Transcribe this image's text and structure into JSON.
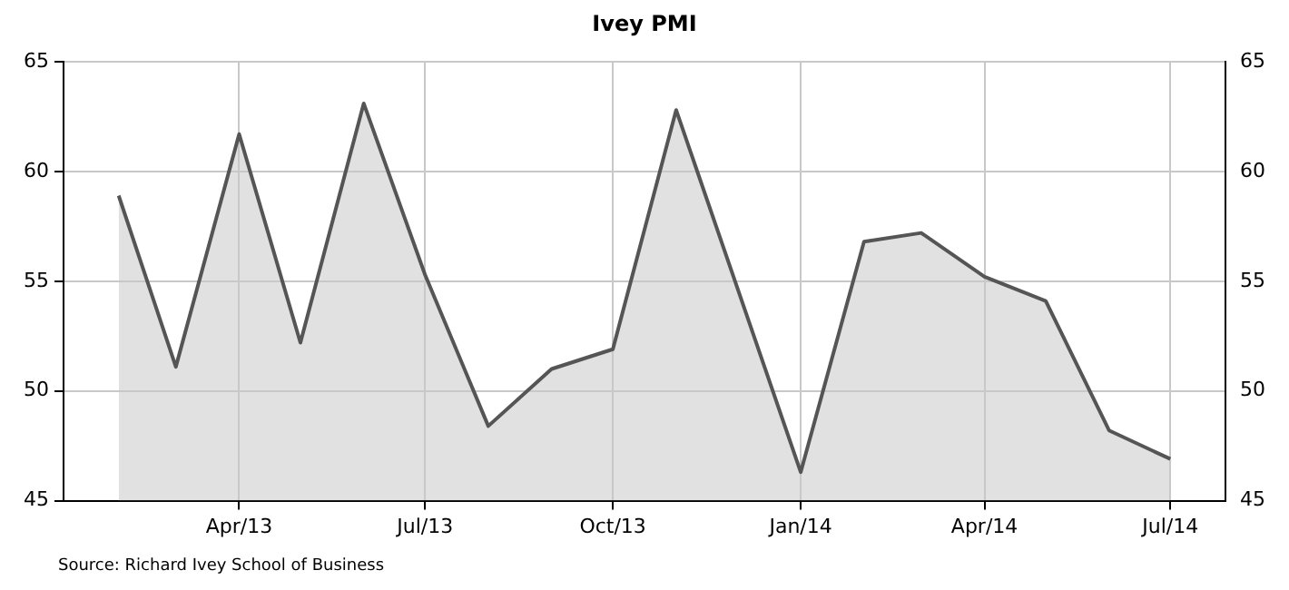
{
  "chart_data": {
    "type": "area",
    "title": "Ivey PMI",
    "x": [
      "2013-02-01",
      "2013-03-01",
      "2013-04-01",
      "2013-05-01",
      "2013-06-01",
      "2013-07-01",
      "2013-08-01",
      "2013-09-01",
      "2013-10-01",
      "2013-11-01",
      "2014-01-01",
      "2014-02-01",
      "2014-03-01",
      "2014-04-01",
      "2014-05-01",
      "2014-06-01",
      "2014-07-01"
    ],
    "series": [
      {
        "color": "#555555",
        "values": [
          58.9,
          51.1,
          61.7,
          52.2,
          63.1,
          55.3,
          48.4,
          51.0,
          51.9,
          62.8,
          46.3,
          56.8,
          57.2,
          55.2,
          54.1,
          48.2,
          46.9
        ]
      }
    ],
    "xlim": [
      "2013-01-05",
      "2014-07-28"
    ],
    "xticks": [
      {
        "value": "2013-04-01",
        "label": "Apr/13"
      },
      {
        "value": "2013-07-01",
        "label": "Jul/13"
      },
      {
        "value": "2013-10-01",
        "label": "Oct/13"
      },
      {
        "value": "2014-01-01",
        "label": "Jan/14"
      },
      {
        "value": "2014-04-01",
        "label": "Apr/14"
      },
      {
        "value": "2014-07-01",
        "label": "Jul/14"
      }
    ],
    "ylim": [
      45,
      65
    ],
    "yticks": [
      45,
      50,
      55,
      60,
      65
    ],
    "y2lim": [
      45,
      65
    ],
    "y2ticks": [
      45,
      50,
      55,
      60,
      65
    ],
    "grid": true,
    "legend": false,
    "marker": "none",
    "line_style": "solid",
    "annotations": [
      "Source: Richard Ivey School of Business"
    ]
  }
}
